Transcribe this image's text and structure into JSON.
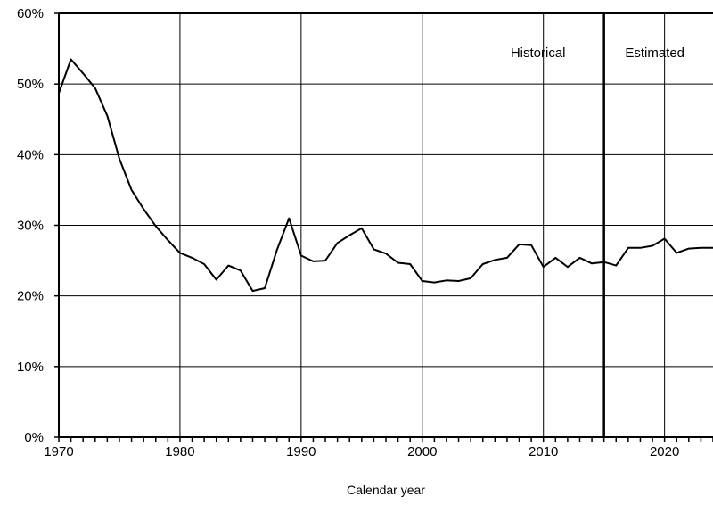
{
  "chart_data": {
    "type": "line",
    "title": "",
    "xlabel": "Calendar year",
    "ylabel": "",
    "xlim": [
      1970,
      2024
    ],
    "ylim": [
      0,
      60
    ],
    "x_ticks": [
      1970,
      1980,
      1990,
      2000,
      2010,
      2020
    ],
    "x_tick_labels": [
      "1970",
      "1980",
      "1990",
      "2000",
      "2010",
      "2020"
    ],
    "y_ticks": [
      0,
      10,
      20,
      30,
      40,
      50,
      60
    ],
    "y_tick_labels": [
      "0%",
      "10%",
      "20%",
      "30%",
      "40%",
      "50%",
      "60%"
    ],
    "grid": true,
    "divider_year": 2015,
    "annotations": {
      "left": "Historical",
      "right": "Estimated"
    },
    "series": [
      {
        "x": [
          1970,
          1971,
          1972,
          1973,
          1974,
          1975,
          1976,
          1977,
          1978,
          1979,
          1980,
          1981,
          1982,
          1983,
          1984,
          1985,
          1986,
          1987,
          1988,
          1989,
          1990,
          1991,
          1992,
          1993,
          1994,
          1995,
          1996,
          1997,
          1998,
          1999,
          2000,
          2001,
          2002,
          2003,
          2004,
          2005,
          2006,
          2007,
          2008,
          2009,
          2010,
          2011,
          2012,
          2013,
          2014,
          2015,
          2016,
          2017,
          2018,
          2019,
          2020,
          2021,
          2022,
          2023,
          2024
        ],
        "values": [
          48.7,
          53.5,
          51.5,
          49.4,
          45.5,
          39.4,
          35.0,
          32.3,
          29.9,
          27.9,
          26.1,
          25.4,
          24.5,
          22.3,
          24.3,
          23.6,
          20.7,
          21.1,
          26.5,
          31.0,
          25.7,
          24.9,
          25.0,
          27.5,
          28.6,
          29.6,
          26.6,
          26.0,
          24.7,
          24.5,
          22.1,
          21.9,
          22.2,
          22.1,
          22.5,
          24.5,
          25.1,
          25.4,
          27.3,
          27.2,
          24.1,
          25.4,
          24.1,
          25.4,
          24.6,
          24.8,
          24.3,
          26.8,
          26.8,
          27.1,
          28.1,
          26.1,
          26.7,
          26.8,
          26.8
        ]
      }
    ]
  }
}
